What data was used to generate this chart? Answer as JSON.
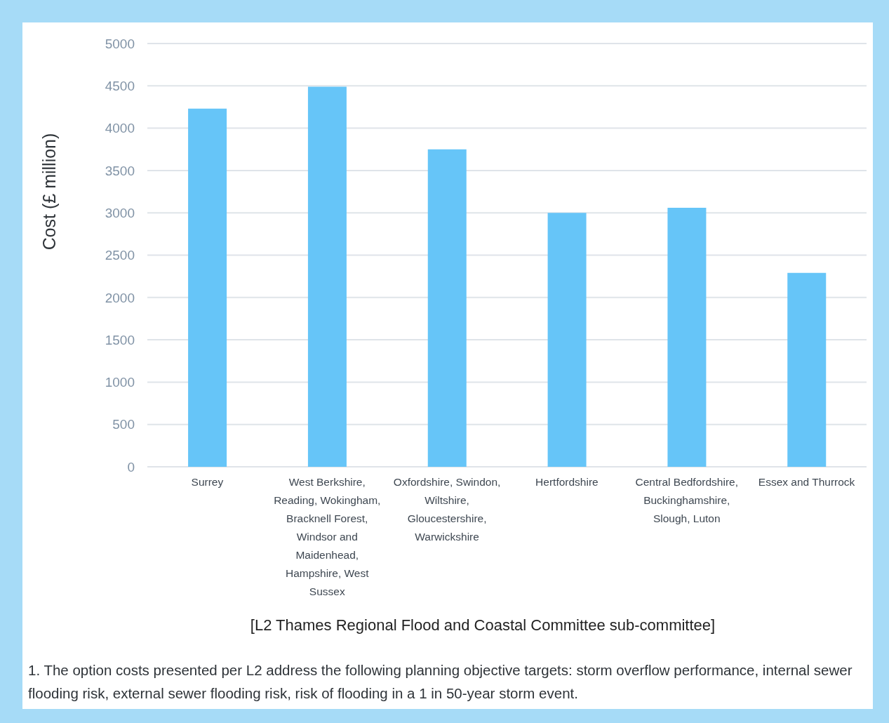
{
  "chart_data": {
    "type": "bar",
    "xlabel": "[L2 Thames Regional Flood and Coastal Committee sub-committee]",
    "ylabel": "Cost (£ million)",
    "categories": [
      "Surrey",
      "West Berkshire, Reading, Wokingham, Bracknell Forest, Windsor and Maidenhead, Hampshire, West Sussex",
      "Oxfordshire, Swindon, Wiltshire, Gloucestershire, Warwickshire",
      "Hertfordshire",
      "Central Bedfordshire, Buckinghamshire, Slough, Luton",
      "Essex and Thurrock"
    ],
    "values": [
      4230,
      4490,
      3750,
      3000,
      3060,
      2290
    ],
    "color": "#66c5f8",
    "ylim": [
      0,
      5000
    ],
    "yticks": [
      0,
      500,
      1000,
      1500,
      2000,
      2500,
      3000,
      3500,
      4000,
      4500,
      5000
    ],
    "grid": "y",
    "annotations": [
      "1. The option costs presented per L2 address the following planning objective targets: storm overflow performance, internal sewer flooding risk, external sewer flooding risk, risk of flooding in a 1 in 50-year storm event."
    ]
  }
}
